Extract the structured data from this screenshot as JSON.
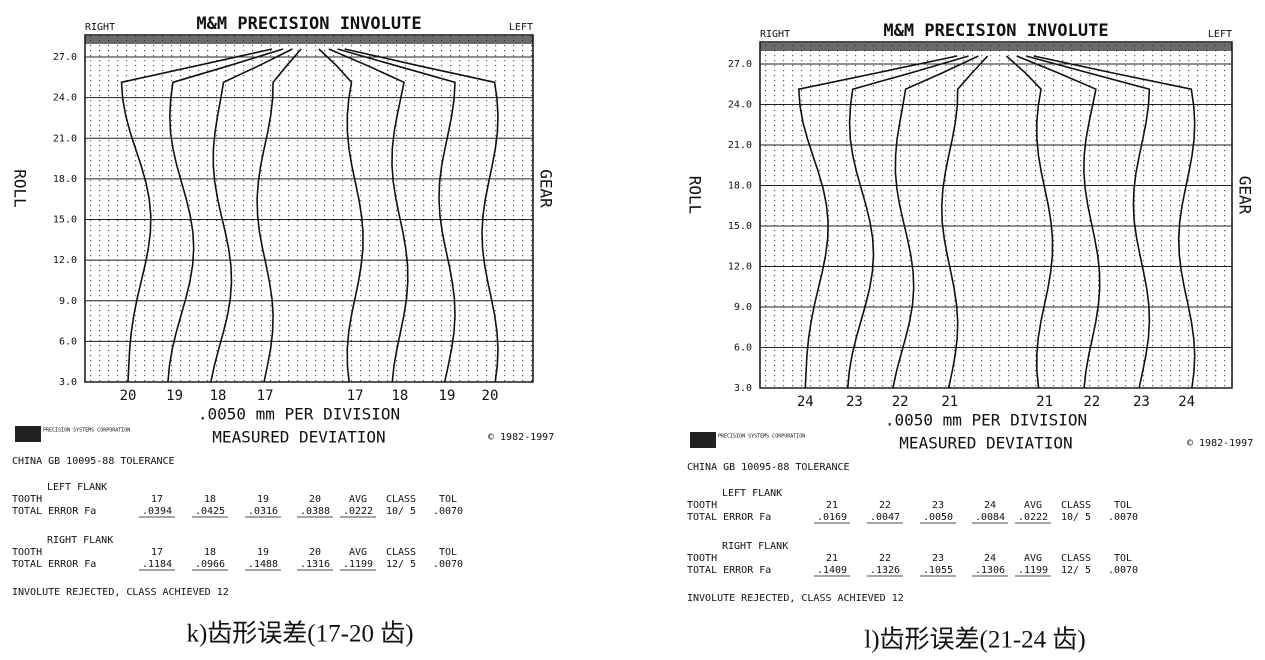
{
  "panels": [
    {
      "header": {
        "right": "RIGHT",
        "title": "M&M PRECISION INVOLUTE",
        "left": "LEFT"
      },
      "roll_label": "ROLL",
      "gear_label": "GEAR",
      "roll_ticks": [
        "27.0",
        "24.0",
        "21.0",
        "18.0",
        "15.0",
        "12.0",
        "9.0",
        "6.0",
        "3.0"
      ],
      "tooth_labels": [
        "20",
        "19",
        "18",
        "17",
        "17",
        "18",
        "19",
        "20"
      ],
      "scale": ".0050 mm PER DIVISION",
      "axis_title": "MEASURED DEVIATION",
      "copyright": "© 1982-1997",
      "logo": "PRECISION SYSTEMS CORPORATION",
      "tolerance": "CHINA GB 10095-88 TOLERANCE",
      "left_flank": {
        "label": "LEFT FLANK",
        "header": [
          "TOOTH",
          "17",
          "18",
          "19",
          "20",
          "AVG",
          "CLASS",
          "TOL"
        ],
        "row": [
          "TOTAL ERROR Fa",
          ".0394",
          ".0425",
          ".0316",
          ".0388",
          ".0222",
          "10/ 5",
          ".0070"
        ]
      },
      "right_flank": {
        "label": "RIGHT FLANK",
        "header": [
          "TOOTH",
          "17",
          "18",
          "19",
          "20",
          "AVG",
          "CLASS",
          "TOL"
        ],
        "row": [
          "TOTAL ERROR Fa",
          ".1184",
          ".0966",
          ".1488",
          ".1316",
          ".1199",
          "12/ 5",
          ".0070"
        ]
      },
      "result": "INVOLUTE REJECTED, CLASS ACHIEVED 12",
      "caption": "k)齿形误差(17-20 齿)"
    },
    {
      "header": {
        "right": "RIGHT",
        "title": "M&M PRECISION INVOLUTE",
        "left": "LEFT"
      },
      "roll_label": "ROLL",
      "gear_label": "GEAR",
      "roll_ticks": [
        "27.0",
        "24.0",
        "21.0",
        "18.0",
        "15.0",
        "12.0",
        "9.0",
        "6.0",
        "3.0"
      ],
      "tooth_labels": [
        "24",
        "23",
        "22",
        "21",
        "21",
        "22",
        "23",
        "24"
      ],
      "scale": ".0050 mm PER DIVISION",
      "axis_title": "MEASURED DEVIATION",
      "copyright": "© 1982-1997",
      "logo": "PRECISION SYSTEMS CORPORATION",
      "tolerance": "CHINA GB 10095-88 TOLERANCE",
      "left_flank": {
        "label": "LEFT FLANK",
        "header": [
          "TOOTH",
          "21",
          "22",
          "23",
          "24",
          "AVG",
          "CLASS",
          "TOL"
        ],
        "row": [
          "TOTAL ERROR Fa",
          ".0169",
          ".0047",
          ".0050",
          ".0084",
          ".0222",
          "10/ 5",
          ".0070"
        ]
      },
      "right_flank": {
        "label": "RIGHT FLANK",
        "header": [
          "TOOTH",
          "21",
          "22",
          "23",
          "24",
          "AVG",
          "CLASS",
          "TOL"
        ],
        "row": [
          "TOTAL ERROR Fa",
          ".1409",
          ".1326",
          ".1055",
          ".1306",
          ".1199",
          "12/ 5",
          ".0070"
        ]
      },
      "result": "INVOLUTE REJECTED, CLASS ACHIEVED 12",
      "caption": "l)齿形误差(21-24 齿)"
    }
  ]
}
